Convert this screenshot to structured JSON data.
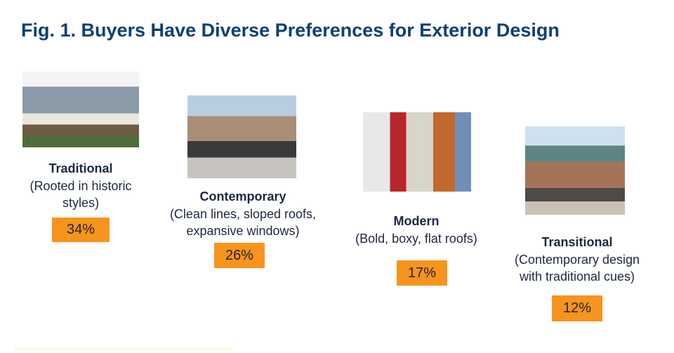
{
  "chart_data": {
    "type": "bar",
    "title": "Fig. 1. Buyers Have Diverse Preferences for Exterior Design",
    "categories": [
      "Traditional",
      "Contemporary",
      "Modern",
      "Transitional"
    ],
    "descriptions": [
      [
        "(Rooted in historic",
        "styles)"
      ],
      [
        "(Clean lines, sloped roofs,",
        "expansive windows)"
      ],
      [
        "(Bold, boxy, flat roofs)"
      ],
      [
        "(Contemporary design",
        "with traditional cues)"
      ]
    ],
    "values": [
      34,
      26,
      17,
      12
    ],
    "labels": [
      "34%",
      "26%",
      "17%",
      "12%"
    ],
    "unit": "%"
  },
  "colors": {
    "title": "#0f3f76",
    "badge": "#f7941d",
    "text": "#1d2740"
  }
}
